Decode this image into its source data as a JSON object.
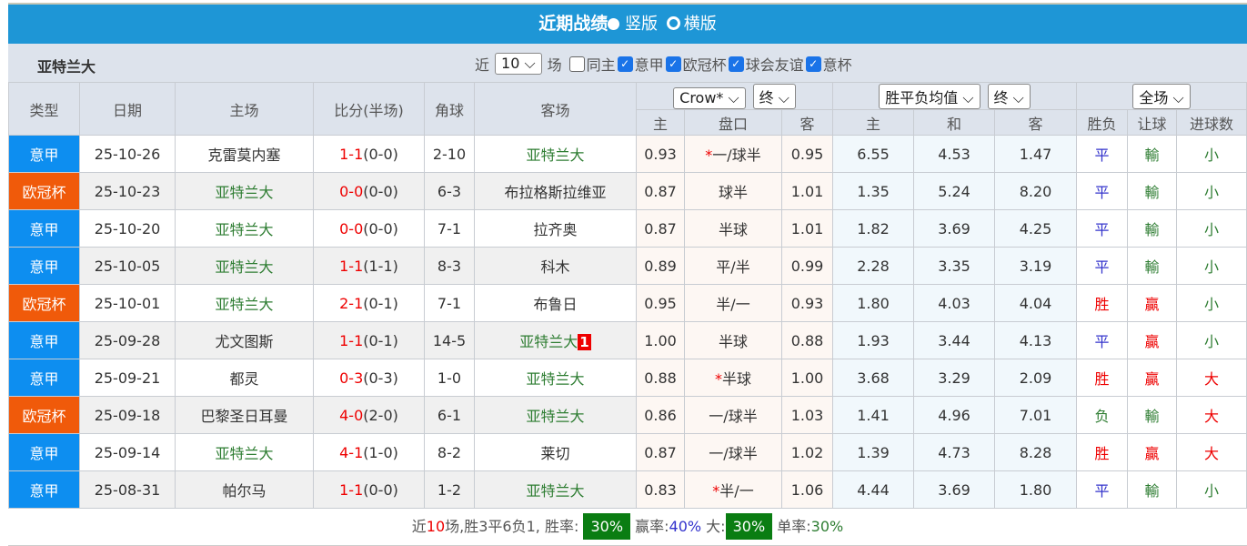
{
  "title": {
    "text": "近期战绩",
    "vertical": "竖版",
    "horizontal": "横版"
  },
  "filter": {
    "team": "亚特兰大",
    "near": "近",
    "count": "10",
    "unit": "场",
    "same_home": "同主",
    "leagues": [
      "意甲",
      "欧冠杯",
      "球会友谊",
      "意杯"
    ]
  },
  "header": {
    "cols": [
      "类型",
      "日期",
      "主场",
      "比分(半场)",
      "角球",
      "客场"
    ],
    "company": "Crow*",
    "odds_time": "终",
    "avg": "胜平负均值",
    "avg_time": "终",
    "scope": "全场",
    "sub": [
      "主",
      "盘口",
      "客",
      "主",
      "和",
      "客",
      "胜负",
      "让球",
      "进球数"
    ]
  },
  "colors": {
    "意甲": "#0d8ef0",
    "欧冠杯": "#f05a0a",
    "home_team": "#2e7d32"
  },
  "rows": [
    {
      "type": "意甲",
      "date": "25-10-26",
      "home": "克雷莫内塞",
      "score": "1-1",
      "half": "(0-0)",
      "corner": "2-10",
      "away": "亚特兰大",
      "o1": "0.93",
      "hcp": "一/球半",
      "star": "*",
      "o2": "0.95",
      "w": "6.55",
      "d": "4.53",
      "l": "1.47",
      "res": "平",
      "ah": "輸",
      "ou": "小"
    },
    {
      "type": "欧冠杯",
      "date": "25-10-23",
      "home": "亚特兰大",
      "score": "0-0",
      "half": "(0-0)",
      "corner": "6-3",
      "away": "布拉格斯拉维亚",
      "o1": "0.87",
      "hcp": "球半",
      "star": "",
      "o2": "1.01",
      "w": "1.35",
      "d": "5.24",
      "l": "8.20",
      "res": "平",
      "ah": "輸",
      "ou": "小"
    },
    {
      "type": "意甲",
      "date": "25-10-20",
      "home": "亚特兰大",
      "score": "0-0",
      "half": "(0-0)",
      "corner": "7-1",
      "away": "拉齐奥",
      "o1": "0.87",
      "hcp": "半球",
      "star": "",
      "o2": "1.01",
      "w": "1.82",
      "d": "3.69",
      "l": "4.25",
      "res": "平",
      "ah": "輸",
      "ou": "小"
    },
    {
      "type": "意甲",
      "date": "25-10-05",
      "home": "亚特兰大",
      "score": "1-1",
      "half": "(1-1)",
      "corner": "8-3",
      "away": "科木",
      "o1": "0.89",
      "hcp": "平/半",
      "star": "",
      "o2": "0.99",
      "w": "2.28",
      "d": "3.35",
      "l": "3.19",
      "res": "平",
      "ah": "輸",
      "ou": "小"
    },
    {
      "type": "欧冠杯",
      "date": "25-10-01",
      "home": "亚特兰大",
      "score": "2-1",
      "half": "(0-1)",
      "corner": "7-1",
      "away": "布鲁日",
      "o1": "0.95",
      "hcp": "半/一",
      "star": "",
      "o2": "0.93",
      "w": "1.80",
      "d": "4.03",
      "l": "4.04",
      "res": "胜",
      "ah": "贏",
      "ou": "小"
    },
    {
      "type": "意甲",
      "date": "25-09-28",
      "home": "尤文图斯",
      "score": "1-1",
      "half": "(0-1)",
      "corner": "14-5",
      "away": "亚特兰大",
      "card": "1",
      "o1": "1.00",
      "hcp": "半球",
      "star": "",
      "o2": "0.88",
      "w": "1.93",
      "d": "3.44",
      "l": "4.13",
      "res": "平",
      "ah": "贏",
      "ou": "小"
    },
    {
      "type": "意甲",
      "date": "25-09-21",
      "home": "都灵",
      "score": "0-3",
      "half": "(0-3)",
      "corner": "1-0",
      "away": "亚特兰大",
      "o1": "0.88",
      "hcp": "半球",
      "star": "*",
      "o2": "1.00",
      "w": "3.68",
      "d": "3.29",
      "l": "2.09",
      "res": "胜",
      "ah": "贏",
      "ou": "大"
    },
    {
      "type": "欧冠杯",
      "date": "25-09-18",
      "home": "巴黎圣日耳曼",
      "score": "4-0",
      "half": "(2-0)",
      "corner": "6-1",
      "away": "亚特兰大",
      "o1": "0.86",
      "hcp": "一/球半",
      "star": "",
      "o2": "1.03",
      "w": "1.41",
      "d": "4.96",
      "l": "7.01",
      "res": "负",
      "ah": "輸",
      "ou": "大"
    },
    {
      "type": "意甲",
      "date": "25-09-14",
      "home": "亚特兰大",
      "score": "4-1",
      "half": "(1-0)",
      "corner": "8-2",
      "away": "莱切",
      "o1": "0.87",
      "hcp": "一/球半",
      "star": "",
      "o2": "1.02",
      "w": "1.39",
      "d": "4.73",
      "l": "8.28",
      "res": "胜",
      "ah": "贏",
      "ou": "大"
    },
    {
      "type": "意甲",
      "date": "25-08-31",
      "home": "帕尔马",
      "score": "1-1",
      "half": "(0-0)",
      "corner": "1-2",
      "away": "亚特兰大",
      "o1": "0.83",
      "hcp": "半/一",
      "star": "*",
      "o2": "1.06",
      "w": "4.44",
      "d": "3.69",
      "l": "1.80",
      "res": "平",
      "ah": "輸",
      "ou": "小"
    }
  ],
  "summary": {
    "p1": "近",
    "n": "10",
    "p2": "场,胜3平6负1, 胜率:",
    "win_rate": "30%",
    "p3": "赢率:",
    "ah_rate": "40%",
    "p4": "大:",
    "big_rate": "30%",
    "p5": "单率:",
    "odd_rate": "30%"
  }
}
